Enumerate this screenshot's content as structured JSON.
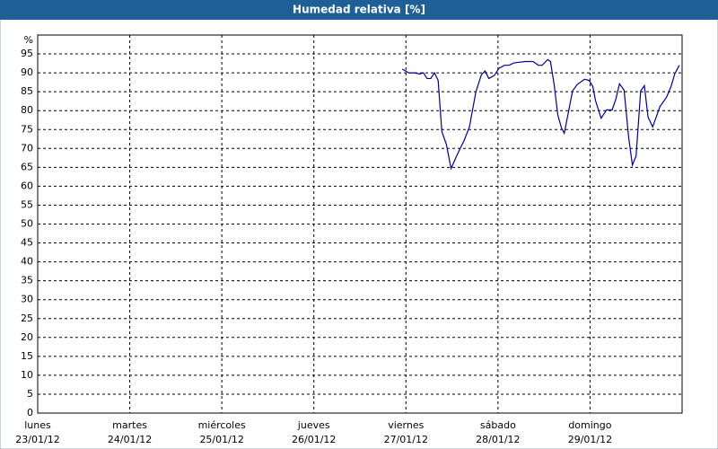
{
  "chart_data": {
    "type": "line",
    "title": "Humedad relativa [%]",
    "y_unit": "%",
    "xlim": [
      0,
      7
    ],
    "xticks": [
      {
        "value": 0,
        "label": "lunes",
        "date": "23/01/12"
      },
      {
        "value": 1,
        "label": "martes",
        "date": "24/01/12"
      },
      {
        "value": 2,
        "label": "miércoles",
        "date": "25/01/12"
      },
      {
        "value": 3,
        "label": "jueves",
        "date": "26/01/12"
      },
      {
        "value": 4,
        "label": "viernes",
        "date": "27/01/12"
      },
      {
        "value": 5,
        "label": "sábado",
        "date": "28/01/12"
      },
      {
        "value": 6,
        "label": "domingo",
        "date": "29/01/12"
      }
    ],
    "ylim": [
      0,
      100
    ],
    "yticks": [
      0,
      5,
      10,
      15,
      20,
      25,
      30,
      35,
      40,
      45,
      50,
      55,
      60,
      65,
      70,
      75,
      80,
      85,
      90,
      95
    ],
    "grid": true,
    "x": [
      3.96,
      4.03,
      4.09,
      4.15,
      4.19,
      4.23,
      4.27,
      4.31,
      4.35,
      4.39,
      4.44,
      4.49,
      4.56,
      4.63,
      4.69,
      4.76,
      4.82,
      4.86,
      4.9,
      4.96,
      5.01,
      5.07,
      5.12,
      5.17,
      5.23,
      5.3,
      5.38,
      5.44,
      5.48,
      5.54,
      5.57,
      5.61,
      5.65,
      5.69,
      5.72,
      5.77,
      5.81,
      5.86,
      5.94,
      5.99,
      6.03,
      6.06,
      6.12,
      6.18,
      6.24,
      6.28,
      6.32,
      6.37,
      6.42,
      6.46,
      6.5,
      6.55,
      6.59,
      6.63,
      6.68,
      6.76,
      6.83,
      6.88,
      6.92,
      6.97
    ],
    "series": [
      {
        "name": "Humedad relativa",
        "color": "#00008b",
        "values": [
          91,
          90,
          90,
          89.7,
          90,
          88.5,
          88.5,
          90,
          88,
          74.5,
          71,
          64.7,
          68.5,
          72,
          75.7,
          85,
          89.5,
          90.5,
          88.5,
          89.3,
          91.2,
          92,
          92,
          92.6,
          92.8,
          93,
          93,
          92,
          92,
          93.5,
          93,
          86.9,
          78.8,
          75.4,
          74,
          80.2,
          85.2,
          86.9,
          88.3,
          88,
          86.4,
          82.6,
          78,
          80.2,
          80.2,
          83,
          87.1,
          85.4,
          72.8,
          65.6,
          68,
          85.2,
          86.6,
          78.3,
          75.7,
          81.1,
          83.5,
          86.4,
          89.7,
          92
        ]
      }
    ]
  }
}
